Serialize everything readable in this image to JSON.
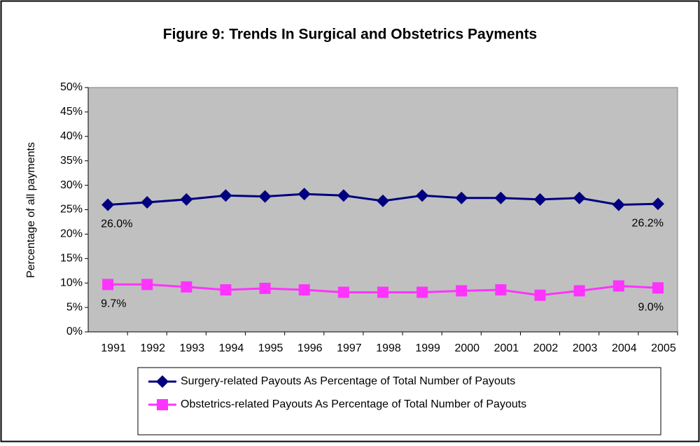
{
  "chart_data": {
    "type": "line",
    "title": "Figure 9: Trends In Surgical and Obstetrics Payments",
    "ylabel": "Percentage of all payments",
    "categories": [
      "1991",
      "1992",
      "1993",
      "1994",
      "1995",
      "1996",
      "1997",
      "1998",
      "1999",
      "2000",
      "2001",
      "2002",
      "2003",
      "2004",
      "2005"
    ],
    "series": [
      {
        "name": "Surgery-related Payouts As Percentage of Total Number of Payouts",
        "color": "#000080",
        "marker": "diamond",
        "values": [
          26.0,
          26.5,
          27.1,
          27.9,
          27.7,
          28.2,
          27.9,
          26.8,
          27.9,
          27.4,
          27.4,
          27.1,
          27.4,
          26.0,
          26.2
        ],
        "value_labels": [
          "26.0%",
          null,
          null,
          null,
          null,
          null,
          null,
          null,
          null,
          null,
          null,
          null,
          null,
          null,
          "26.2%"
        ]
      },
      {
        "name": "Obstetrics-related Payouts As Percentage of Total Number of Payouts",
        "color": "#ff33ff",
        "marker": "square",
        "values": [
          9.7,
          9.7,
          9.2,
          8.6,
          8.9,
          8.6,
          8.1,
          8.1,
          8.1,
          8.4,
          8.6,
          7.5,
          8.4,
          9.4,
          9.0
        ],
        "value_labels": [
          "9.7%",
          null,
          null,
          null,
          null,
          null,
          null,
          null,
          null,
          null,
          null,
          null,
          null,
          null,
          "9.0%"
        ]
      }
    ],
    "ylim": [
      0,
      50
    ],
    "yticks": [
      {
        "value": 0,
        "label": "0%"
      },
      {
        "value": 5,
        "label": "5%"
      },
      {
        "value": 10,
        "label": "10%"
      },
      {
        "value": 15,
        "label": "15%"
      },
      {
        "value": 20,
        "label": "20%"
      },
      {
        "value": 25,
        "label": "25%"
      },
      {
        "value": 30,
        "label": "30%"
      },
      {
        "value": 35,
        "label": "35%"
      },
      {
        "value": 40,
        "label": "40%"
      },
      {
        "value": 45,
        "label": "45%"
      },
      {
        "value": 50,
        "label": "50%"
      }
    ],
    "grid": false,
    "legend": "bottom"
  }
}
